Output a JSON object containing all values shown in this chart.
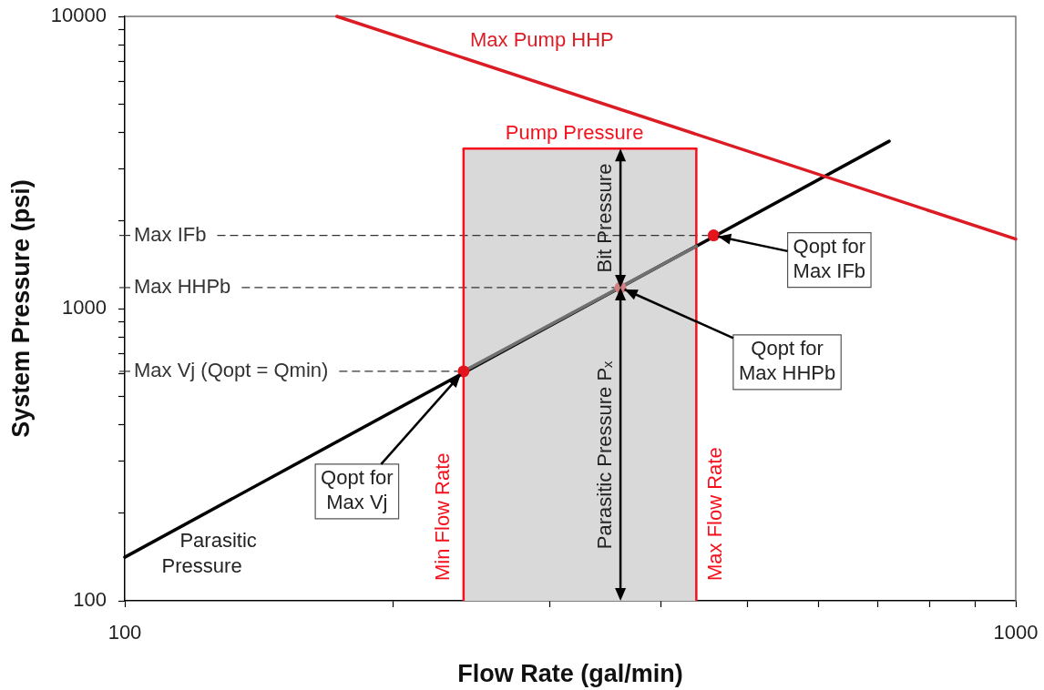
{
  "chart_data": {
    "type": "line",
    "xlabel": "Flow Rate (gal/min)",
    "ylabel": "System Pressure (psi)",
    "log": "xy",
    "xlim": [
      100,
      1000
    ],
    "ylim": [
      100,
      10000
    ],
    "xticks": [
      100,
      {
        "value": 200,
        "label": null
      },
      {
        "value": 300,
        "label": null
      },
      {
        "value": 400,
        "label": null
      },
      {
        "value": 500,
        "label": null
      },
      {
        "value": 600,
        "label": null
      },
      {
        "value": 700,
        "label": null
      },
      {
        "value": 800,
        "label": null
      },
      {
        "value": 900,
        "label": null
      },
      1000
    ],
    "yticks": [
      100,
      {
        "value": 200,
        "label": null
      },
      {
        "value": 300,
        "label": null
      },
      {
        "value": 400,
        "label": null
      },
      {
        "value": 500,
        "label": null
      },
      {
        "value": 600,
        "label": null
      },
      {
        "value": 700,
        "label": null
      },
      {
        "value": 800,
        "label": null
      },
      {
        "value": 900,
        "label": null
      },
      1000,
      {
        "value": 2000,
        "label": null
      },
      {
        "value": 3000,
        "label": null
      },
      {
        "value": 4000,
        "label": null
      },
      {
        "value": 5000,
        "label": null
      },
      {
        "value": 6000,
        "label": null
      },
      {
        "value": 7000,
        "label": null
      },
      {
        "value": 8000,
        "label": null
      },
      {
        "value": 9000,
        "label": null
      },
      10000
    ],
    "series": [
      {
        "type": "area",
        "name": "Pump Pressure",
        "color": "#d9d9d9",
        "x": [
          240,
          438
        ],
        "values": [
          3530,
          3530
        ]
      },
      {
        "name": "Parasitic Pressure",
        "color": "#000000",
        "x": [
          100,
          721
        ],
        "values": [
          141,
          3740
        ]
      },
      {
        "color": "#707070",
        "x": [
          240,
          438
        ],
        "values": [
          610,
          1634
        ]
      },
      {
        "name": "Max Pump HHP",
        "color": "#dc1c24",
        "x": [
          173,
          1000
        ],
        "values": [
          10000,
          1730
        ]
      },
      {
        "type": "scatter",
        "marker": "circle",
        "colors": [
          "#e3141b",
          "#d08080",
          "#e3141b"
        ],
        "x": [
          240,
          360,
          458
        ],
        "values": [
          610,
          1180,
          1780
        ]
      }
    ],
    "ref_lines": [
      {
        "axis": "y",
        "value": 1780,
        "label": "Max IFb",
        "line_style": "dashed",
        "color": "#333333"
      },
      {
        "axis": "y",
        "value": 1180,
        "label": "Max HHPb",
        "line_style": "dashed",
        "color": "#333333"
      },
      {
        "axis": "y",
        "value": 610,
        "label": "Max Vj (Qopt = Qmin)",
        "line_style": "dashed",
        "color": "#333333"
      },
      {
        "axis": "x",
        "value": 240,
        "label": "Min Flow Rate",
        "color": "#f5101c"
      },
      {
        "axis": "x",
        "value": 438,
        "label": "Max Flow Rate",
        "color": "#f5101c"
      }
    ],
    "annotations": [
      "Bit Pressure",
      "Parasitic Pressure Pₓ",
      {
        "text": "Qopt for\nMax Vj",
        "x": 240,
        "y": 610
      },
      {
        "text": "Qopt for\nMax HHPb",
        "x": 360,
        "y": 1180
      },
      {
        "text": "Qopt for\nMax IFb",
        "x": 458,
        "y": 1780
      }
    ]
  }
}
